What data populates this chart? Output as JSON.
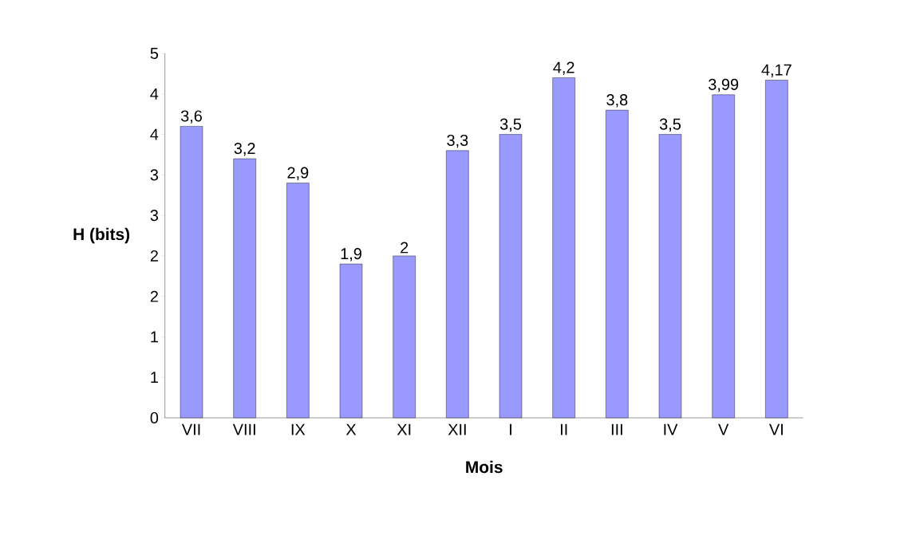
{
  "chart_data": {
    "type": "bar",
    "xlabel": "Mois",
    "ylabel": "H (bits)",
    "categories": [
      "VII",
      "VIII",
      "IX",
      "X",
      "XI",
      "XII",
      "I",
      "II",
      "III",
      "IV",
      "V",
      "VI"
    ],
    "values": [
      3.6,
      3.2,
      2.9,
      1.9,
      2,
      3.3,
      3.5,
      4.2,
      3.8,
      3.5,
      3.99,
      4.17
    ],
    "value_labels": [
      "3,6",
      "3,2",
      "2,9",
      "1,9",
      "2",
      "3,3",
      "3,5",
      "4,2",
      "3,8",
      "3,5",
      "3,99",
      "4,17"
    ],
    "color": "#9999ff",
    "ylim": [
      0,
      4.5
    ],
    "yticks": [
      {
        "value": 0,
        "label": "0"
      },
      {
        "value": 0.5,
        "label": "1"
      },
      {
        "value": 1,
        "label": "1"
      },
      {
        "value": 1.5,
        "label": "2"
      },
      {
        "value": 2,
        "label": "2"
      },
      {
        "value": 2.5,
        "label": "3"
      },
      {
        "value": 3,
        "label": "3"
      },
      {
        "value": 3.5,
        "label": "4"
      },
      {
        "value": 4,
        "label": "4"
      },
      {
        "value": 4.5,
        "label": "5"
      }
    ],
    "grid": false
  }
}
